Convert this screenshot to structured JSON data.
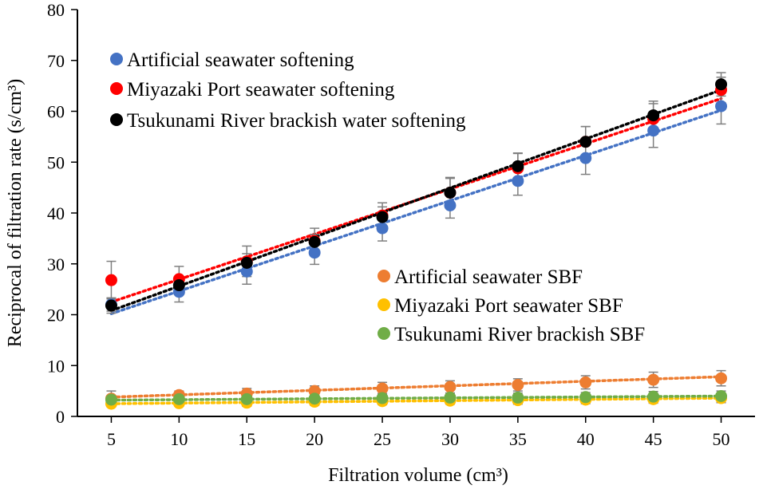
{
  "chart_data": {
    "type": "scatter",
    "title": "",
    "xlabel": "Filtration volume (cm³)",
    "ylabel": "Reciprocal of filtration rate  (s/cm³)",
    "x": [
      5,
      10,
      15,
      20,
      25,
      30,
      35,
      40,
      45,
      50
    ],
    "xticks": [
      "5",
      "10",
      "15",
      "20",
      "25",
      "30",
      "35",
      "40",
      "45",
      "50"
    ],
    "xlim": [
      2.5,
      52.5
    ],
    "ylim": [
      0,
      80
    ],
    "yticks": [
      "0",
      "10",
      "20",
      "30",
      "40",
      "50",
      "60",
      "70",
      "80"
    ],
    "grid": false,
    "legend_upper": "top-left",
    "legend_lower": "center-right",
    "series": [
      {
        "name": "Artificial seawater softening",
        "color": "#4472c4",
        "line_color": "#4472c4",
        "values": [
          22.0,
          24.5,
          28.5,
          32.2,
          37.0,
          41.5,
          46.3,
          50.8,
          56.2,
          61.0
        ],
        "errors": [
          1.3,
          2.0,
          2.5,
          2.3,
          2.5,
          2.5,
          2.8,
          3.2,
          3.3,
          3.5
        ],
        "trend": [
          20.2,
          60.2
        ]
      },
      {
        "name": "Miyazaki Port seawater softening",
        "color": "#ff0000",
        "line_color": "#ff0000",
        "values": [
          26.8,
          27.0,
          30.5,
          34.5,
          39.5,
          44.0,
          48.8,
          54.0,
          58.5,
          64.2
        ],
        "errors": [
          3.7,
          2.5,
          3.0,
          2.5,
          2.5,
          2.8,
          3.0,
          3.0,
          3.0,
          2.5
        ],
        "trend": [
          22.5,
          62.5
        ]
      },
      {
        "name": "Tsukunami River brackish water softening",
        "color": "#000000",
        "line_color": "#000000",
        "values": [
          21.8,
          25.8,
          30.2,
          34.3,
          39.2,
          44.0,
          49.2,
          54.0,
          59.2,
          65.3
        ],
        "errors": [
          1.5,
          1.5,
          1.8,
          1.5,
          2.0,
          3.0,
          2.5,
          3.0,
          2.8,
          2.3
        ],
        "trend": [
          20.8,
          64.2
        ]
      },
      {
        "name": "Artificial seawater SBF",
        "color": "#ed7d31",
        "line_color": "#ed7d31",
        "values": [
          3.5,
          4.2,
          4.5,
          5.0,
          5.5,
          5.8,
          6.2,
          6.7,
          7.2,
          7.5
        ],
        "errors": [
          1.5,
          0.8,
          1.0,
          1.0,
          1.2,
          1.2,
          1.2,
          1.3,
          1.5,
          1.5
        ],
        "trend": [
          3.8,
          7.8
        ]
      },
      {
        "name": "Miyazaki Port seawater SBF",
        "color": "#ffc000",
        "line_color": "#ffc000",
        "values": [
          2.5,
          2.6,
          2.7,
          2.9,
          3.0,
          3.1,
          3.2,
          3.3,
          3.4,
          3.6
        ],
        "errors": [
          0.6,
          0.6,
          0.7,
          0.7,
          0.7,
          0.7,
          0.8,
          0.8,
          0.8,
          0.9
        ],
        "trend": [
          2.5,
          3.6
        ]
      },
      {
        "name": "Tsukunami River brackish SBF",
        "color": "#70ad47",
        "line_color": "#70ad47",
        "values": [
          3.3,
          3.4,
          3.4,
          3.5,
          3.6,
          3.7,
          3.7,
          3.8,
          3.9,
          4.0
        ],
        "errors": [
          0.8,
          0.8,
          0.8,
          0.8,
          0.9,
          0.9,
          0.9,
          0.9,
          1.0,
          1.0
        ],
        "trend": [
          3.2,
          4.0
        ]
      }
    ]
  }
}
